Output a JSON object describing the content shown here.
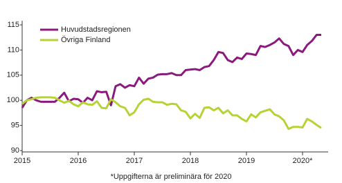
{
  "chart_data": {
    "type": "line",
    "categories": [
      "2015",
      null,
      null,
      null,
      null,
      null,
      null,
      null,
      null,
      null,
      null,
      null,
      "2016",
      null,
      null,
      null,
      null,
      null,
      null,
      null,
      null,
      null,
      null,
      null,
      "2017",
      null,
      null,
      null,
      null,
      null,
      null,
      null,
      null,
      null,
      null,
      null,
      "2018",
      null,
      null,
      null,
      null,
      null,
      null,
      null,
      null,
      null,
      null,
      null,
      "2019",
      null,
      null,
      null,
      null,
      null,
      null,
      null,
      null,
      null,
      null,
      null,
      "2020*",
      null,
      null,
      null,
      null
    ],
    "series": [
      {
        "name": "Huvudstadsregionen",
        "color": "#8c1a7e",
        "values": [
          98.5,
          100,
          100.5,
          100,
          99.7,
          99.7,
          99.7,
          99.7,
          100.5,
          101.5,
          99.8,
          100.3,
          100.2,
          99.5,
          100.5,
          100,
          101.8,
          101.6,
          101.7,
          99,
          102.8,
          103.2,
          102.5,
          103,
          102.8,
          104.5,
          103.3,
          104.3,
          104.5,
          105.1,
          105.2,
          105.2,
          105.4,
          105,
          105,
          106,
          106.1,
          106.2,
          106,
          106.6,
          106.8,
          108,
          109.6,
          109.4,
          108,
          107.6,
          108.5,
          108.2,
          109.3,
          109.2,
          109,
          110.8,
          110.6,
          111,
          111.5,
          112.3,
          111.2,
          110.8,
          109,
          110,
          109.6,
          111,
          111.8,
          113,
          113
        ]
      },
      {
        "name": "Övriga Finland",
        "color": "#b5d334",
        "values": [
          99.3,
          100,
          100.2,
          100.5,
          100.6,
          100.6,
          100.6,
          100.5,
          100,
          99.5,
          99.9,
          99.2,
          98.8,
          99.6,
          99.2,
          99.1,
          99.8,
          98.5,
          98.4,
          100.2,
          99.6,
          98.8,
          98.5,
          97,
          97.6,
          99.2,
          100.1,
          100.3,
          99.7,
          99.6,
          99.6,
          99.1,
          99.3,
          99.2,
          98,
          97.7,
          96.4,
          97.3,
          96.5,
          98.5,
          98.6,
          98,
          98.5,
          97.4,
          98,
          97,
          97,
          96.3,
          95.8,
          97.2,
          96.6,
          97.6,
          97.9,
          98.2,
          97.2,
          96.8,
          96,
          94.3,
          94.7,
          94.7,
          94.6,
          96.3,
          95.8,
          95.1,
          94.5
        ]
      }
    ],
    "ylim": [
      90,
      115
    ],
    "yticks": [
      90,
      95,
      100,
      105,
      110,
      115
    ],
    "grid": false,
    "legend": "upper-left",
    "footnote": "*Uppgifterna är preliminära för 2020"
  }
}
